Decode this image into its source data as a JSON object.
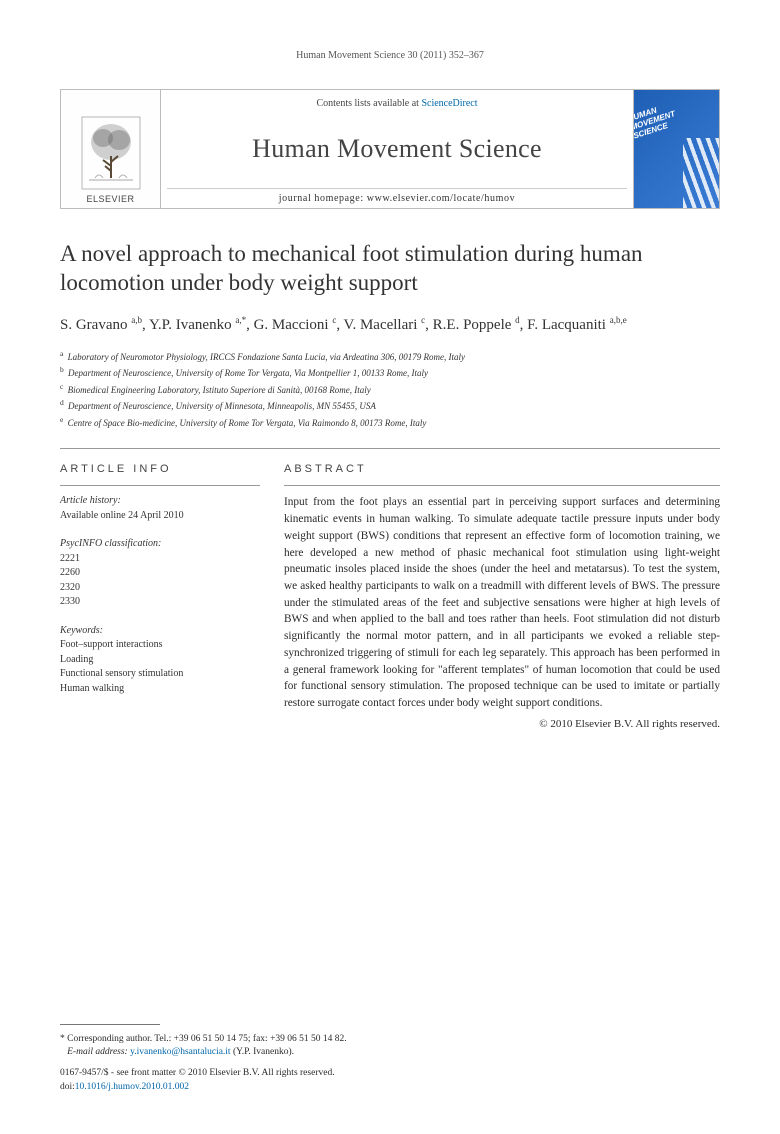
{
  "running_head": "Human Movement Science 30 (2011) 352–367",
  "masthead": {
    "contents_prefix": "Contents lists available at ",
    "contents_link": "ScienceDirect",
    "journal": "Human Movement Science",
    "homepage_label": "journal homepage: ",
    "homepage_url": "www.elsevier.com/locate/humov",
    "publisher": "ELSEVIER",
    "cover_line1": "HUMAN",
    "cover_line2": "MOVEMENT",
    "cover_line3": "SCIENCE"
  },
  "title": "A novel approach to mechanical foot stimulation during human locomotion under body weight support",
  "authors_html": "S. Gravano <sup>a,b</sup>, Y.P. Ivanenko <sup>a,*</sup>, G. Maccioni <sup>c</sup>, V. Macellari <sup>c</sup>, R.E. Poppele <sup>d</sup>, F. Lacquaniti <sup>a,b,e</sup>",
  "affiliations": [
    {
      "key": "a",
      "text": "Laboratory of Neuromotor Physiology, IRCCS Fondazione Santa Lucia, via Ardeatina 306, 00179 Rome, Italy"
    },
    {
      "key": "b",
      "text": "Department of Neuroscience, University of Rome Tor Vergata, Via Montpellier 1, 00133 Rome, Italy"
    },
    {
      "key": "c",
      "text": "Biomedical Engineering Laboratory, Istituto Superiore di Sanità, 00168 Rome, Italy"
    },
    {
      "key": "d",
      "text": "Department of Neuroscience, University of Minnesota, Minneapolis, MN 55455, USA"
    },
    {
      "key": "e",
      "text": "Centre of Space Bio-medicine, University of Rome Tor Vergata, Via Raimondo 8, 00173 Rome, Italy"
    }
  ],
  "info_head": "ARTICLE INFO",
  "abstract_head": "ABSTRACT",
  "history": {
    "label": "Article history:",
    "line": "Available online 24 April 2010"
  },
  "psycinfo": {
    "label": "PsycINFO classification:",
    "codes": [
      "2221",
      "2260",
      "2320",
      "2330"
    ]
  },
  "keywords": {
    "label": "Keywords:",
    "items": [
      "Foot–support interactions",
      "Loading",
      "Functional sensory stimulation",
      "Human walking"
    ]
  },
  "abstract": "Input from the foot plays an essential part in perceiving support surfaces and determining kinematic events in human walking. To simulate adequate tactile pressure inputs under body weight support (BWS) conditions that represent an effective form of locomotion training, we here developed a new method of phasic mechanical foot stimulation using light-weight pneumatic insoles placed inside the shoes (under the heel and metatarsus). To test the system, we asked healthy participants to walk on a treadmill with different levels of BWS. The pressure under the stimulated areas of the feet and subjective sensations were higher at high levels of BWS and when applied to the ball and toes rather than heels. Foot stimulation did not disturb significantly the normal motor pattern, and in all participants we evoked a reliable step-synchronized triggering of stimuli for each leg separately. This approach has been performed in a general framework looking for \"afferent templates\" of human locomotion that could be used for functional sensory stimulation. The proposed technique can be used to imitate or partially restore surrogate contact forces under body weight support conditions.",
  "copyright": "© 2010 Elsevier B.V. All rights reserved.",
  "footnote": {
    "marker": "*",
    "text": "Corresponding author. Tel.: +39 06 51 50 14 75; fax: +39 06 51 50 14 82.",
    "email_label": "E-mail address:",
    "email": "y.ivanenko@hsantalucia.it",
    "email_who": "(Y.P. Ivanenko)."
  },
  "pubinfo": {
    "issn_line": "0167-9457/$ - see front matter © 2010 Elsevier B.V. All rights reserved.",
    "doi_label": "doi:",
    "doi": "10.1016/j.humov.2010.01.002"
  },
  "colors": {
    "link": "#0066aa",
    "text": "#2a2a2a",
    "rule": "#999999",
    "cover_bg_from": "#1e5fb5",
    "cover_bg_to": "#3a7bd5"
  }
}
